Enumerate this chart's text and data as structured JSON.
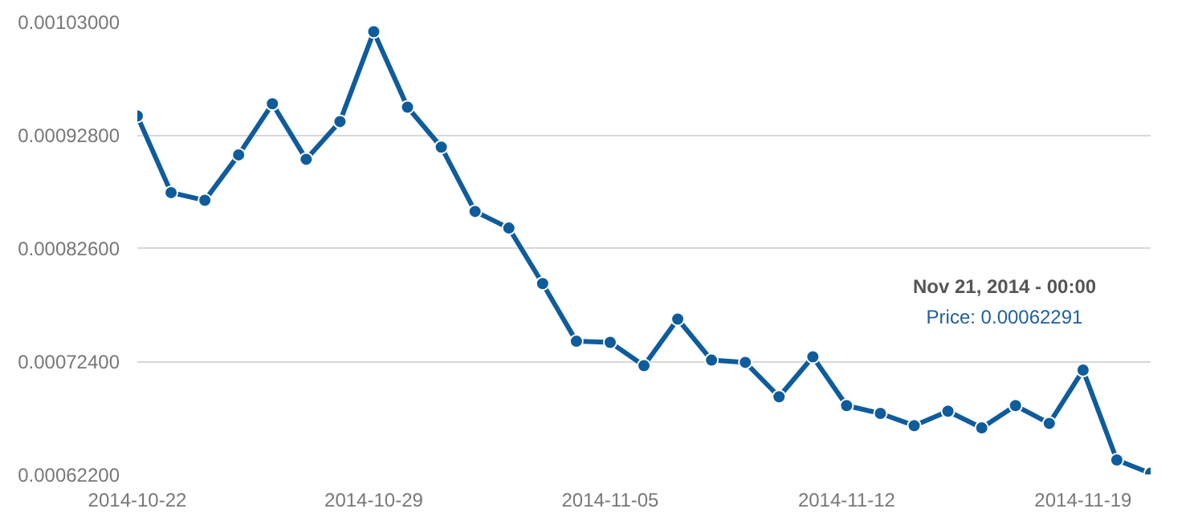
{
  "chart_data": {
    "type": "line",
    "x": [
      "2014-10-22",
      "2014-10-23",
      "2014-10-24",
      "2014-10-25",
      "2014-10-26",
      "2014-10-27",
      "2014-10-28",
      "2014-10-29",
      "2014-10-30",
      "2014-10-31",
      "2014-11-01",
      "2014-11-02",
      "2014-11-03",
      "2014-11-04",
      "2014-11-05",
      "2014-11-06",
      "2014-11-07",
      "2014-11-08",
      "2014-11-09",
      "2014-11-10",
      "2014-11-11",
      "2014-11-12",
      "2014-11-13",
      "2014-11-14",
      "2014-11-15",
      "2014-11-16",
      "2014-11-17",
      "2014-11-18",
      "2014-11-19",
      "2014-11-20",
      "2014-11-21"
    ],
    "series": [
      {
        "color": "#0f5c9c",
        "values": [
          0.000945,
          0.000876,
          0.000869,
          0.00091,
          0.000956,
          0.000906,
          0.00094,
          0.001021,
          0.000953,
          0.000917,
          0.000859,
          0.000844,
          0.000794,
          0.000742,
          0.000741,
          0.00072,
          0.000762,
          0.000725,
          0.000723,
          0.000692,
          0.000728,
          0.000684,
          0.000677,
          0.000666,
          0.000679,
          0.000664,
          0.000684,
          0.000668,
          0.000716,
          0.000635,
          0.000623
        ]
      }
    ],
    "xlim": [
      "2014-10-22",
      "2014-11-21"
    ],
    "xticks": [
      "2014-10-22",
      "2014-10-29",
      "2014-11-05",
      "2014-11-12",
      "2014-11-19"
    ],
    "ylim": [
      0.000622,
      0.00103
    ],
    "yticks": [
      {
        "value": 0.000622,
        "label": "0.00062200"
      },
      {
        "value": 0.000724,
        "label": "0.00072400"
      },
      {
        "value": 0.000826,
        "label": "0.00082600"
      },
      {
        "value": 0.000928,
        "label": "0.00092800"
      },
      {
        "value": 0.00103,
        "label": "0.00103000"
      }
    ],
    "grid": "y",
    "marker": "circle",
    "line_style": "solid",
    "annotations": [
      "Nov 21, 2014 - 00:00",
      "Price: 0.00062291"
    ]
  }
}
